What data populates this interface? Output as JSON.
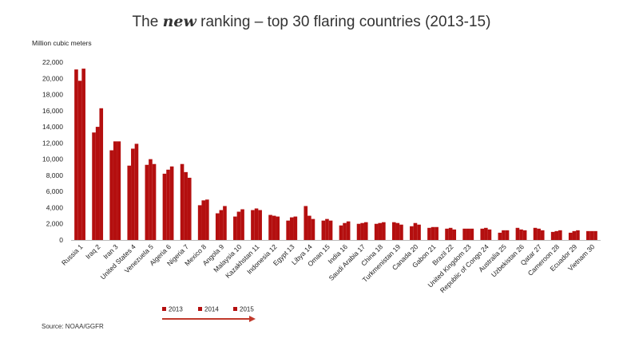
{
  "chart_data": {
    "type": "bar",
    "title_parts": [
      "The ",
      "new",
      " ranking – top 30 flaring countries (2013-15)"
    ],
    "ylabel": "Million cubic meters",
    "ylim": [
      0,
      22000
    ],
    "yticks": [
      0,
      2000,
      4000,
      6000,
      8000,
      10000,
      12000,
      14000,
      16000,
      18000,
      20000,
      22000
    ],
    "ytick_labels": [
      "0",
      "2,000",
      "4,000",
      "6,000",
      "8,000",
      "10,000",
      "12,000",
      "14,000",
      "16,000",
      "18,000",
      "20,000",
      "22,000"
    ],
    "grid": false,
    "legend_position": "bottom-left",
    "colors": {
      "bars": "#b40f0f",
      "arrow": "#c0392b"
    },
    "categories": [
      "Russia 1",
      "Iraq 2",
      "Iran 3",
      "United States 4",
      "Venezuela 5",
      "Algeria 6",
      "Nigeria 7",
      "Mexico 8",
      "Angola 9",
      "Malaysia 10",
      "Kazakhstan 11",
      "Indonesia 12",
      "Egypt 13",
      "Libya 14",
      "Oman 15",
      "India 16",
      "Saudi Arabia 17",
      "China 18",
      "Turkmenistan 19",
      "Canada 20",
      "Gabon 21",
      "Brazil 22",
      "United Kingdom 23",
      "Republic of Congo 24",
      "Australia 25",
      "Uzbekistan 26",
      "Qatar 27",
      "Cameroon 28",
      "Ecuador 29",
      "Vietnam 30"
    ],
    "series": [
      {
        "name": "2013",
        "values": [
          21100,
          13300,
          11100,
          9200,
          9300,
          8200,
          9400,
          4300,
          3300,
          2900,
          3700,
          3100,
          2400,
          4200,
          2400,
          1800,
          2000,
          2000,
          2200,
          1700,
          1500,
          1400,
          1400,
          1400,
          900,
          1500,
          1500,
          1000,
          900,
          1100
        ]
      },
      {
        "name": "2014",
        "values": [
          19700,
          14000,
          12200,
          11300,
          10000,
          8700,
          8400,
          4900,
          3700,
          3500,
          3900,
          3000,
          2800,
          3000,
          2600,
          2100,
          2100,
          2100,
          2100,
          2100,
          1600,
          1500,
          1400,
          1500,
          1200,
          1300,
          1400,
          1100,
          1100,
          1100
        ]
      },
      {
        "name": "2015",
        "values": [
          21200,
          16300,
          12200,
          11900,
          9400,
          9100,
          7700,
          5000,
          4200,
          3800,
          3700,
          2900,
          2900,
          2600,
          2400,
          2300,
          2200,
          2200,
          1900,
          1900,
          1600,
          1300,
          1400,
          1300,
          1200,
          1200,
          1200,
          1200,
          1200,
          1100
        ]
      }
    ],
    "source": "Source: NOAA/GGFR"
  }
}
